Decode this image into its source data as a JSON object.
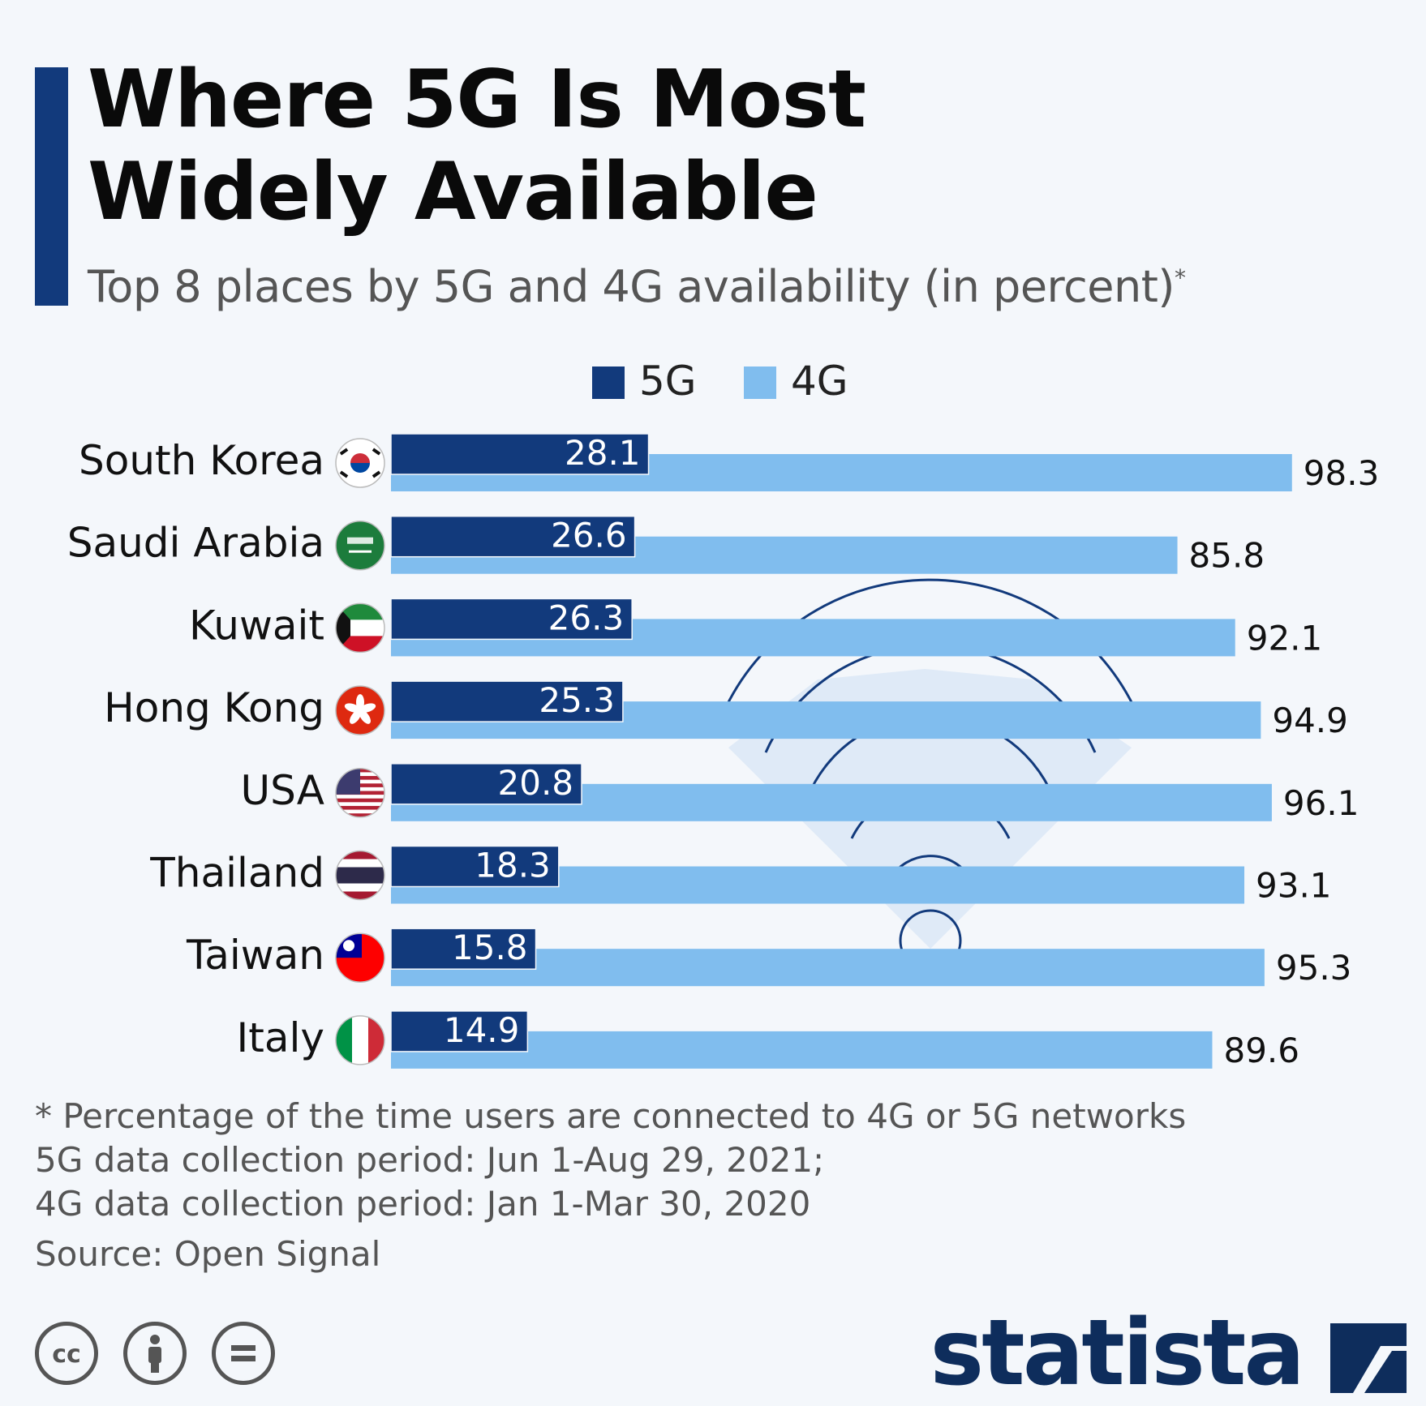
{
  "header": {
    "title_line1": "Where 5G Is Most",
    "title_line2": "Widely Available",
    "subtitle": "Top 8 places by 5G and 4G availability (in percent)",
    "subtitle_marker": "*"
  },
  "legend": {
    "items": [
      {
        "label": "5G",
        "color": "#123a7c"
      },
      {
        "label": "4G",
        "color": "#80bdee"
      }
    ]
  },
  "chart_data": {
    "type": "bar",
    "orientation": "horizontal",
    "categories": [
      "South Korea",
      "Saudi Arabia",
      "Kuwait",
      "Hong Kong",
      "USA",
      "Thailand",
      "Taiwan",
      "Italy"
    ],
    "series": [
      {
        "name": "5G",
        "color": "#123a7c",
        "values": [
          28.1,
          26.6,
          26.3,
          25.3,
          20.8,
          18.3,
          15.8,
          14.9
        ]
      },
      {
        "name": "4G",
        "color": "#80bdee",
        "values": [
          98.3,
          85.8,
          92.1,
          94.9,
          96.1,
          93.1,
          95.3,
          89.6
        ]
      }
    ],
    "xlim": [
      0,
      100
    ],
    "grid": false,
    "legend_position": "top-center",
    "flag_icons": [
      "south-korea-flag-icon",
      "saudi-arabia-flag-icon",
      "kuwait-flag-icon",
      "hong-kong-flag-icon",
      "usa-flag-icon",
      "thailand-flag-icon",
      "taiwan-flag-icon",
      "italy-flag-icon"
    ],
    "decoration": "wifi-signal-icon"
  },
  "footer": {
    "note": "* Percentage of the time users are connected to 4G or 5G networks",
    "period_5g": "5G data collection period: Jun 1-Aug 29, 2021;",
    "period_4g": "4G data collection period: Jan 1-Mar 30, 2020",
    "source": "Source: Open Signal",
    "license_icons": [
      "cc-icon",
      "attribution-icon",
      "no-derivatives-icon"
    ],
    "brand": "statista",
    "brand_color": "#0e2d5c"
  }
}
